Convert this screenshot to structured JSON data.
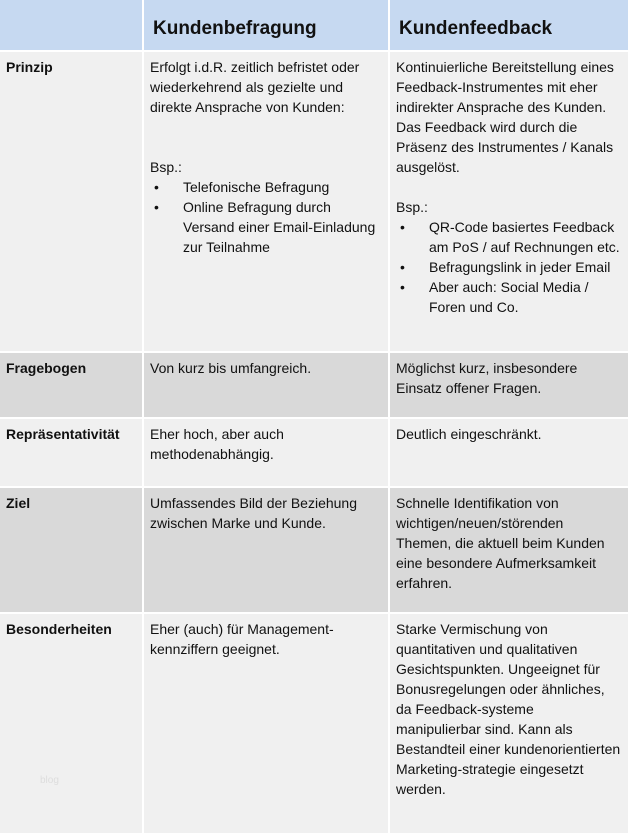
{
  "header": {
    "col2": "Kundenbefragung",
    "col3": "Kundenfeedback"
  },
  "rows": [
    {
      "label": "Prinzip",
      "befragung": {
        "text": "Erfolgt i.d.R. zeitlich befristet oder wiederkehrend als gezielte und direkte  Ansprache von Kunden:",
        "bsp": "Bsp.:",
        "items": [
          "Telefonische Befragung",
          "Online Befragung durch Versand einer Email-Einladung zur Teilnahme"
        ]
      },
      "feedback": {
        "text": "Kontinuierliche Bereitstellung eines Feedback-Instrumentes mit eher indirekter Ansprache des Kunden. Das Feedback wird durch die Präsenz des Instrumentes / Kanals ausgelöst.",
        "bsp": "Bsp.:",
        "items": [
          "QR-Code basiertes Feedback am PoS / auf Rechnungen etc.",
          "Befragungslink in jeder Email",
          "Aber auch: Social Media / Foren und Co."
        ]
      }
    },
    {
      "label": "Fragebogen",
      "befragung": "Von kurz bis umfangreich.",
      "feedback": "Möglichst kurz, insbesondere Einsatz offener Fragen."
    },
    {
      "label": "Repräsentativität",
      "befragung": "Eher hoch, aber auch methodenabhängig.",
      "feedback": "Deutlich eingeschränkt."
    },
    {
      "label": "Ziel",
      "befragung": "Umfassendes Bild der Beziehung zwischen Marke und Kunde.",
      "feedback": "Schnelle Identifikation von wichtigen/neuen/störenden Themen, die aktuell beim Kunden eine besondere Aufmerksamkeit erfahren."
    },
    {
      "label": "Besonderheiten",
      "befragung": "Eher (auch) für Management-kennziffern geeignet.",
      "feedback": "Starke Vermischung von quantitativen und qualitativen Gesichtspunkten. Ungeeignet für Bonusregelungen oder ähnliches, da Feedback-systeme manipulierbar sind. Kann als Bestandteil einer kundenorientierten Marketing-strategie eingesetzt werden."
    }
  ],
  "watermark": "blog",
  "colors": {
    "header": "#c6d9f1",
    "row_light": "#f0f0f0",
    "row_dark": "#d9d9d9"
  }
}
